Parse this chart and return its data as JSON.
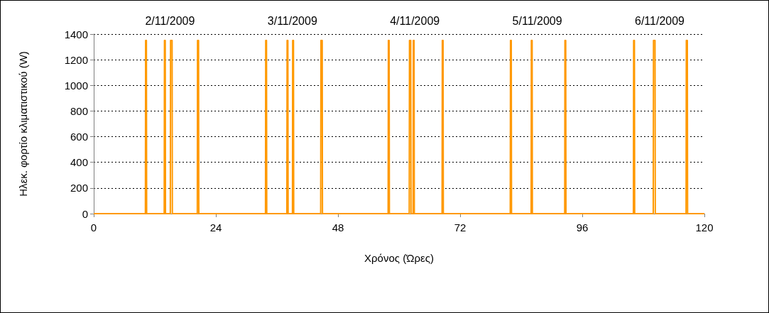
{
  "chart_data": {
    "type": "line",
    "xlabel": "Χρόνος (Ώρες)",
    "ylabel": "Ηλεκ. φορτίο κλιματιστικού (W)",
    "series": [
      {
        "color": "#ff9900",
        "x": [
          0,
          10.15,
          10.2,
          10.35,
          10.4,
          13.85,
          13.9,
          14.05,
          14.1,
          15.05,
          15.1,
          15.4,
          15.45,
          20.35,
          20.4,
          20.6,
          20.65,
          33.75,
          33.8,
          33.95,
          34,
          37.95,
          38,
          38.15,
          38.2,
          39.05,
          39.1,
          39.25,
          39.3,
          44.6,
          44.65,
          44.9,
          44.95,
          57.85,
          57.9,
          58.05,
          58.1,
          62,
          62.05,
          62.3,
          62.35,
          62.75,
          62.8,
          62.95,
          63,
          68.45,
          68.5,
          68.65,
          68.7,
          81.85,
          81.9,
          82.05,
          82.1,
          85.95,
          86,
          86.15,
          86.2,
          92.55,
          92.6,
          92.75,
          92.8,
          106.05,
          106.1,
          106.25,
          106.3,
          109.95,
          110,
          110.3,
          110.35,
          116.4,
          116.45,
          116.65,
          116.7,
          120
        ],
        "values": [
          0,
          0,
          1350,
          1350,
          0,
          0,
          1350,
          1350,
          0,
          0,
          1350,
          1350,
          0,
          0,
          1350,
          1350,
          0,
          0,
          1350,
          1350,
          0,
          0,
          1350,
          1350,
          0,
          0,
          1350,
          1350,
          0,
          0,
          1350,
          1350,
          0,
          0,
          1350,
          1350,
          0,
          0,
          1350,
          1350,
          0,
          0,
          1350,
          1350,
          0,
          0,
          1350,
          1350,
          0,
          0,
          1350,
          1350,
          0,
          0,
          1350,
          1350,
          0,
          0,
          1350,
          1350,
          0,
          0,
          1350,
          1350,
          0,
          0,
          1350,
          1350,
          0,
          0,
          1350,
          1350,
          0,
          0
        ]
      }
    ],
    "xlim": [
      0,
      120
    ],
    "xticks": [
      0,
      24,
      48,
      72,
      96,
      120
    ],
    "ylim": [
      0,
      1400
    ],
    "yticks": [
      0,
      200,
      400,
      600,
      800,
      1000,
      1200,
      1400
    ],
    "grid": "y",
    "marker": "none",
    "line_style": "solid",
    "annotations": [
      "2/11/2009",
      "3/11/2009",
      "4/11/2009",
      "5/11/2009",
      "6/11/2009"
    ]
  }
}
